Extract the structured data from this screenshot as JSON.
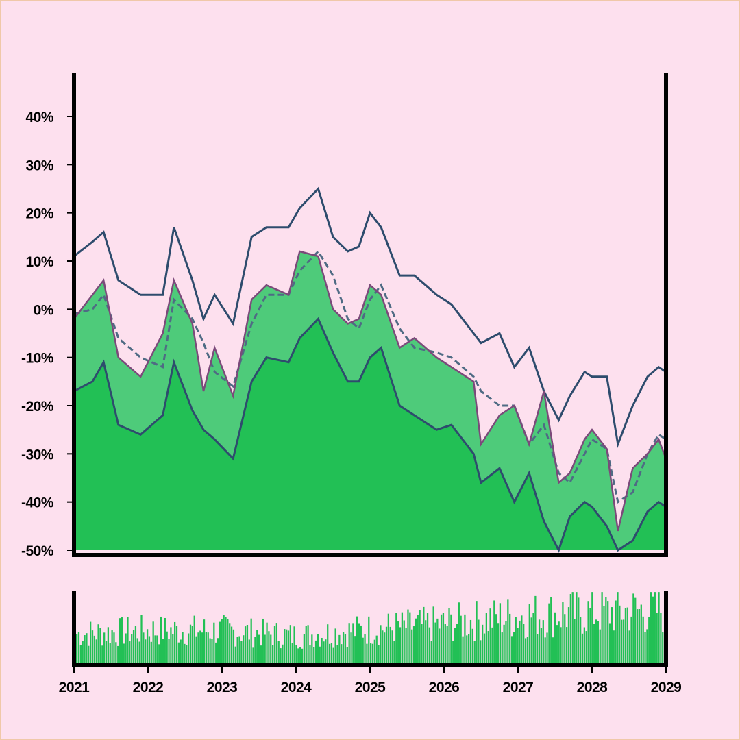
{
  "chart_data": [
    {
      "type": "area",
      "title": "",
      "xlabel": "",
      "ylabel": "",
      "ylim": [
        -50,
        50
      ],
      "xlim": [
        2021,
        2029
      ],
      "y_ticks": [
        {
          "value": 40,
          "label": "40%"
        },
        {
          "value": 30,
          "label": "30%"
        },
        {
          "value": 20,
          "label": "20%"
        },
        {
          "value": 10,
          "label": "10%"
        },
        {
          "value": 0,
          "label": "0%"
        },
        {
          "value": -10,
          "label": "-10%"
        },
        {
          "value": -20,
          "label": "-20%"
        },
        {
          "value": -30,
          "label": "-30%"
        },
        {
          "value": -40,
          "label": "-40%"
        },
        {
          "value": -50,
          "label": "-50%"
        }
      ],
      "x": [
        2021.0,
        2021.25,
        2021.4,
        2021.6,
        2021.9,
        2022.2,
        2022.35,
        2022.6,
        2022.75,
        2022.9,
        2023.15,
        2023.4,
        2023.6,
        2023.9,
        2024.05,
        2024.3,
        2024.5,
        2024.7,
        2024.85,
        2025.0,
        2025.15,
        2025.4,
        2025.6,
        2025.9,
        2026.1,
        2026.4,
        2026.5,
        2026.75,
        2026.95,
        2027.15,
        2027.35,
        2027.55,
        2027.7,
        2027.9,
        2028.0,
        2028.2,
        2028.35,
        2028.55,
        2028.75,
        2028.9,
        2029.0
      ],
      "series": [
        {
          "role": "price",
          "color": "#7b4a7a",
          "values": [
            -2,
            3,
            6,
            -10,
            -14,
            -5,
            6,
            -3,
            -17,
            -8,
            -18,
            2,
            5,
            3,
            12,
            11,
            0,
            -3,
            -2,
            5,
            3,
            -8,
            -6,
            -10,
            -12,
            -15,
            -28,
            -22,
            -20,
            -28,
            -17,
            -36,
            -34,
            -27,
            -25,
            -29,
            -46,
            -33,
            -30,
            -27,
            -31
          ]
        },
        {
          "role": "moving-average",
          "color": "#4f6b84",
          "dashed": true,
          "values": [
            -1,
            0,
            3,
            -6,
            -10,
            -12,
            2,
            -2,
            -7,
            -13,
            -16,
            -3,
            3,
            3,
            8,
            12,
            7,
            -2,
            -4,
            2,
            5,
            -4,
            -8,
            -9,
            -10,
            -14,
            -17,
            -20,
            -20,
            -28,
            -24,
            -34,
            -36,
            -30,
            -27,
            -29,
            -40,
            -38,
            -30,
            -26,
            -27
          ]
        },
        {
          "role": "upper-band",
          "color": "#2e4c6d",
          "values": [
            11,
            14,
            16,
            6,
            3,
            3,
            17,
            6,
            -2,
            3,
            -3,
            15,
            17,
            17,
            21,
            25,
            15,
            12,
            13,
            20,
            17,
            7,
            7,
            3,
            1,
            -5,
            -7,
            -5,
            -12,
            -8,
            -17,
            -23,
            -18,
            -13,
            -14,
            -14,
            -28,
            -20,
            -14,
            -12,
            -13
          ]
        },
        {
          "role": "lower-band",
          "color": "#2e4c6d",
          "values": [
            -17,
            -15,
            -11,
            -24,
            -26,
            -22,
            -11,
            -21,
            -25,
            -27,
            -31,
            -15,
            -10,
            -11,
            -6,
            -2,
            -9,
            -15,
            -15,
            -10,
            -8,
            -20,
            -22,
            -25,
            -24,
            -30,
            -36,
            -33,
            -40,
            -34,
            -44,
            -52,
            -43,
            -40,
            -41,
            -45,
            -50,
            -48,
            -42,
            -40,
            -41
          ]
        }
      ],
      "fill_colors": {
        "upper_fill": "#4ecb7a",
        "lower_fill": "#22c055"
      }
    },
    {
      "type": "bar",
      "role": "volume",
      "color": "#22c055",
      "x_ticks": [
        "2021",
        "2022",
        "2023",
        "2024",
        "2025",
        "2026",
        "2027",
        "2028",
        "2029"
      ],
      "x": [
        2021,
        2022,
        2023,
        2024,
        2025,
        2026,
        2027,
        2028,
        2029
      ],
      "values": [
        0.45,
        0.5,
        0.5,
        0.42,
        0.52,
        0.6,
        0.72,
        0.78,
        0.82
      ]
    }
  ]
}
